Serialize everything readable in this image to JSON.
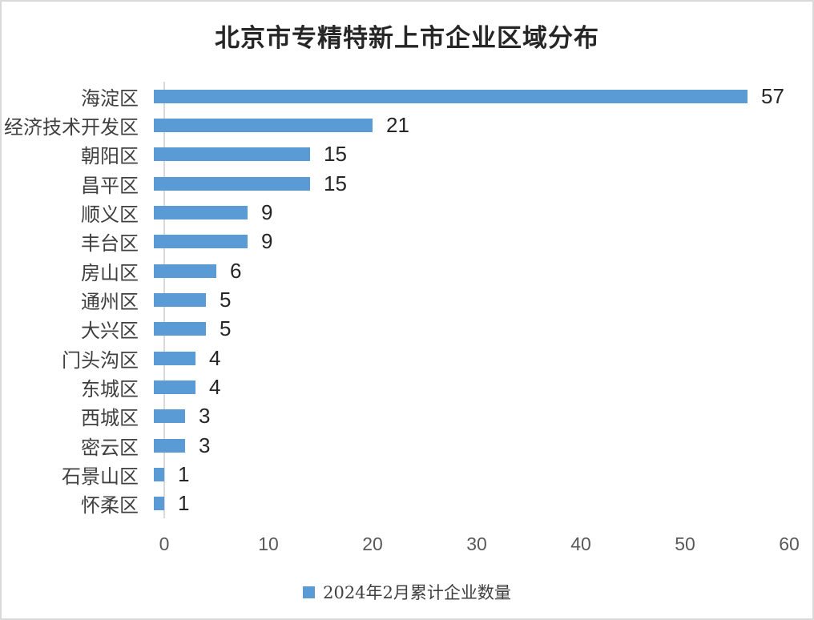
{
  "title": "北京市专精特新上市企业区域分布",
  "chart_data": {
    "type": "bar",
    "orientation": "horizontal",
    "title": "北京市专精特新上市企业区域分布",
    "categories": [
      "海淀区",
      "经济技术开发区",
      "朝阳区",
      "昌平区",
      "顺义区",
      "丰台区",
      "房山区",
      "通州区",
      "大兴区",
      "门头沟区",
      "东城区",
      "西城区",
      "密云区",
      "石景山区",
      "怀柔区"
    ],
    "values": [
      57,
      21,
      15,
      15,
      9,
      9,
      6,
      5,
      5,
      4,
      4,
      3,
      3,
      1,
      1
    ],
    "xlim": [
      0,
      60
    ],
    "xticks": [
      0,
      10,
      20,
      30,
      40,
      50,
      60
    ],
    "grid": false,
    "data_labels": true,
    "bar_color": "#5b9bd5",
    "axis_color": "#d9d9d9",
    "legend_label": "2024年2月累计企业数量",
    "legend_position": "bottom"
  }
}
